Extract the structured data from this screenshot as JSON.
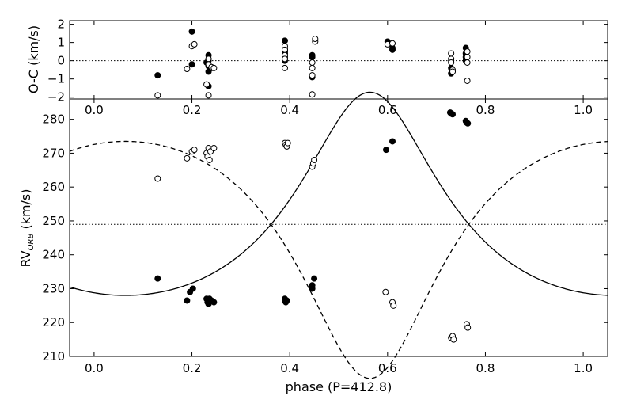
{
  "chart_data": [
    {
      "type": "scatter",
      "panel": "residuals",
      "xlabel": "",
      "ylabel": "O-C (km/s)",
      "xlim": [
        -0.05,
        1.05
      ],
      "ylim": [
        -2.1,
        2.2
      ],
      "xticks": [
        "0.0",
        "0.2",
        "0.4",
        "0.6",
        "0.8",
        "1.0"
      ],
      "yticks": [
        "−2",
        "−1",
        "0",
        "1",
        "2"
      ],
      "grid": false,
      "reference_line": 0,
      "series": [
        {
          "marker": "filled",
          "points": [
            [
              0.13,
              -0.8
            ],
            [
              0.2,
              -0.2
            ],
            [
              0.2,
              1.6
            ],
            [
              0.23,
              -0.1
            ],
            [
              0.234,
              0.3
            ],
            [
              0.234,
              -0.3
            ],
            [
              0.234,
              -0.6
            ],
            [
              0.234,
              -1.4
            ],
            [
              0.234,
              0.0
            ],
            [
              0.24,
              -0.4
            ],
            [
              0.39,
              1.1
            ],
            [
              0.39,
              0.6
            ],
            [
              0.39,
              0.4
            ],
            [
              0.39,
              0.2
            ],
            [
              0.39,
              0.0
            ],
            [
              0.39,
              0.5
            ],
            [
              0.446,
              0.3
            ],
            [
              0.446,
              0.2
            ],
            [
              0.446,
              -0.9
            ],
            [
              0.6,
              1.05
            ],
            [
              0.61,
              0.7
            ],
            [
              0.61,
              0.6
            ],
            [
              0.73,
              -0.4
            ],
            [
              0.73,
              -0.7
            ],
            [
              0.73,
              0.0
            ],
            [
              0.76,
              0.7
            ],
            [
              0.76,
              0.4
            ],
            [
              0.76,
              0.2
            ],
            [
              0.76,
              0.0
            ]
          ]
        },
        {
          "marker": "open",
          "points": [
            [
              0.13,
              -1.9
            ],
            [
              0.19,
              -0.45
            ],
            [
              0.2,
              0.8
            ],
            [
              0.205,
              0.9
            ],
            [
              0.23,
              -1.3
            ],
            [
              0.234,
              -1.9
            ],
            [
              0.234,
              0.1
            ],
            [
              0.234,
              -0.2
            ],
            [
              0.24,
              -0.35
            ],
            [
              0.245,
              -0.4
            ],
            [
              0.39,
              0.8
            ],
            [
              0.39,
              0.6
            ],
            [
              0.39,
              0.3
            ],
            [
              0.39,
              0.1
            ],
            [
              0.39,
              -0.4
            ],
            [
              0.446,
              -0.1
            ],
            [
              0.446,
              -0.4
            ],
            [
              0.446,
              -0.8
            ],
            [
              0.446,
              -1.85
            ],
            [
              0.452,
              1.05
            ],
            [
              0.452,
              1.2
            ],
            [
              0.6,
              0.9
            ],
            [
              0.61,
              0.95
            ],
            [
              0.73,
              0.4
            ],
            [
              0.73,
              0.1
            ],
            [
              0.73,
              -0.1
            ],
            [
              0.733,
              -0.5
            ],
            [
              0.733,
              -0.6
            ],
            [
              0.763,
              0.5
            ],
            [
              0.763,
              0.2
            ],
            [
              0.763,
              -0.1
            ],
            [
              0.763,
              -1.1
            ]
          ]
        }
      ]
    },
    {
      "type": "scatter",
      "panel": "radial-velocity",
      "xlabel": "phase (P=412.8)",
      "ylabel": "RV",
      "ylabel_sub": "ORB",
      "ylabel_unit": " (km/s)",
      "xlim": [
        -0.05,
        1.05
      ],
      "ylim": [
        210,
        286
      ],
      "xticks": [
        "0.0",
        "0.2",
        "0.4",
        "0.6",
        "0.8",
        "1.0"
      ],
      "yticks": [
        "210",
        "220",
        "230",
        "240",
        "250",
        "260",
        "270",
        "280"
      ],
      "grid": false,
      "systemic_velocity": 249,
      "series": [
        {
          "marker": "filled",
          "line": "solid",
          "curve": {
            "gamma": 249,
            "K": 30,
            "e": 0.3,
            "omega_deg": 0,
            "t0_phase": 0.564
          },
          "points": [
            [
              0.13,
              233
            ],
            [
              0.19,
              226.5
            ],
            [
              0.196,
              229
            ],
            [
              0.202,
              230
            ],
            [
              0.23,
              227
            ],
            [
              0.232,
              226
            ],
            [
              0.234,
              225.5
            ],
            [
              0.236,
              227
            ],
            [
              0.24,
              226.5
            ],
            [
              0.245,
              226
            ],
            [
              0.39,
              227
            ],
            [
              0.39,
              226.5
            ],
            [
              0.392,
              226
            ],
            [
              0.394,
              226.5
            ],
            [
              0.446,
              231
            ],
            [
              0.446,
              230
            ],
            [
              0.45,
              233
            ],
            [
              0.597,
              271
            ],
            [
              0.61,
              273.5
            ],
            [
              0.728,
              282
            ],
            [
              0.73,
              281.7
            ],
            [
              0.733,
              281.5
            ],
            [
              0.76,
              279.5
            ],
            [
              0.762,
              279
            ],
            [
              0.764,
              278.8
            ]
          ]
        },
        {
          "marker": "open",
          "line": "dashed",
          "curve": {
            "gamma": 249,
            "K": 35,
            "e": 0.3,
            "omega_deg": 180,
            "t0_phase": 0.564
          },
          "points": [
            [
              0.13,
              262.5
            ],
            [
              0.19,
              268.5
            ],
            [
              0.2,
              270.5
            ],
            [
              0.205,
              271
            ],
            [
              0.23,
              270
            ],
            [
              0.232,
              269
            ],
            [
              0.234,
              271.5
            ],
            [
              0.236,
              268
            ],
            [
              0.238,
              270.5
            ],
            [
              0.245,
              271.5
            ],
            [
              0.39,
              273
            ],
            [
              0.392,
              272.5
            ],
            [
              0.394,
              272
            ],
            [
              0.396,
              273
            ],
            [
              0.446,
              266
            ],
            [
              0.448,
              267
            ],
            [
              0.45,
              268
            ],
            [
              0.596,
              229
            ],
            [
              0.61,
              226
            ],
            [
              0.612,
              225
            ],
            [
              0.73,
              215.5
            ],
            [
              0.733,
              216
            ],
            [
              0.735,
              215
            ],
            [
              0.762,
              219.5
            ],
            [
              0.764,
              218.5
            ]
          ]
        }
      ]
    }
  ]
}
